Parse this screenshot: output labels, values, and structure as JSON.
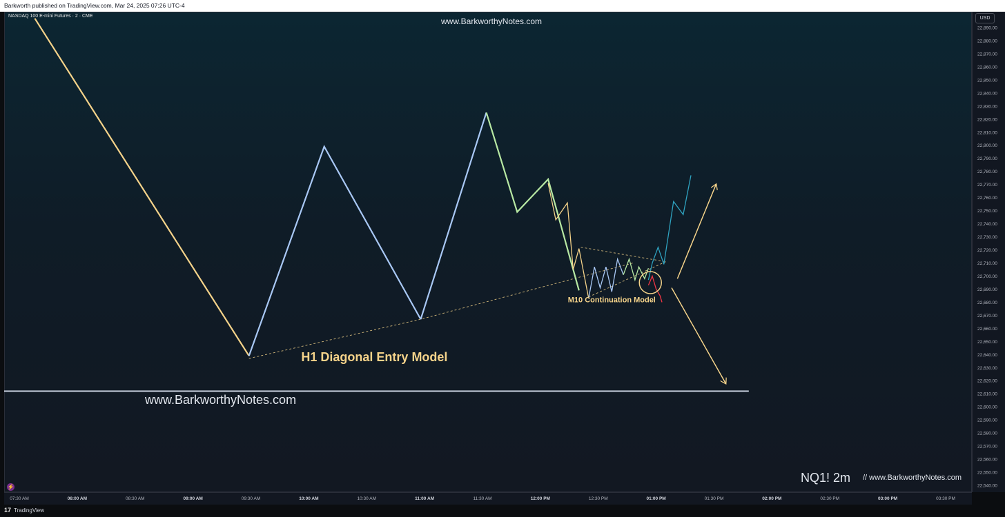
{
  "header": {
    "publisher": "Barkworth published on TradingView.com, Mar 24, 2025 07:26 UTC-4"
  },
  "symbol": {
    "title": "NASDAQ 100 E-mini Futures · 2 · CME"
  },
  "price_axis": {
    "currency": "USD"
  },
  "watermarks": {
    "top": "www.BarkworthyNotes.com",
    "bottom_left": "www.BarkworthyNotes.com",
    "ticker": "NQ1! 2m",
    "bottom_right": "//  www.BarkworthyNotes.com"
  },
  "footer": {
    "logo_icon": "tradingview-logo-icon",
    "label": "TradingView"
  },
  "annotations": {
    "h1": "H1 Diagonal Entry Model",
    "m10": "M10 Continuation Model"
  },
  "colors": {
    "yellow": "#f5d38a",
    "blue": "#a9c8f5",
    "green": "#b7e8a3",
    "teal": "#2fa3c0",
    "red": "#f23645",
    "level_line": "#dde6f5"
  },
  "chart_data": {
    "type": "line",
    "y_scale": "linear",
    "ylim": [
      22535,
      22895
    ],
    "grid": false,
    "y_ticks": [
      22540,
      22550,
      22560,
      22570,
      22580,
      22590,
      22600,
      22610,
      22620,
      22630,
      22640,
      22650,
      22660,
      22670,
      22680,
      22690,
      22700,
      22710,
      22720,
      22730,
      22740,
      22750,
      22760,
      22770,
      22780,
      22790,
      22800,
      22810,
      22820,
      22830,
      22840,
      22850,
      22860,
      22870,
      22880,
      22890
    ],
    "x_ticks": [
      {
        "label": "07:30 AM",
        "bold": false
      },
      {
        "label": "08:00 AM",
        "bold": true
      },
      {
        "label": "08:30 AM",
        "bold": false
      },
      {
        "label": "09:00 AM",
        "bold": true
      },
      {
        "label": "09:30 AM",
        "bold": false
      },
      {
        "label": "10:00 AM",
        "bold": true
      },
      {
        "label": "10:30 AM",
        "bold": false
      },
      {
        "label": "11:00 AM",
        "bold": true
      },
      {
        "label": "11:30 AM",
        "bold": false
      },
      {
        "label": "12:00 PM",
        "bold": true
      },
      {
        "label": "12:30 PM",
        "bold": false
      },
      {
        "label": "01:00 PM",
        "bold": true
      },
      {
        "label": "01:30 PM",
        "bold": false
      },
      {
        "label": "02:00 PM",
        "bold": true
      },
      {
        "label": "02:30 PM",
        "bold": false
      },
      {
        "label": "03:00 PM",
        "bold": true
      },
      {
        "label": "03:30 PM",
        "bold": false
      }
    ],
    "x_start_minutes": 450,
    "x_step_minutes": 30,
    "series": [
      {
        "color_key": "yellow",
        "width": 2.2,
        "points": [
          [
            458,
            22897
          ],
          [
            569,
            22639
          ]
        ]
      },
      {
        "color_key": "blue",
        "width": 2.2,
        "points": [
          [
            569,
            22639
          ],
          [
            608,
            22799
          ],
          [
            658,
            22667
          ]
        ]
      },
      {
        "color_key": "blue",
        "width": 2.2,
        "points": [
          [
            658,
            22667
          ],
          [
            692,
            22825
          ]
        ]
      },
      {
        "color_key": "green",
        "width": 2.2,
        "points": [
          [
            692,
            22825
          ],
          [
            708,
            22749
          ],
          [
            724,
            22774
          ],
          [
            740,
            22689
          ]
        ]
      },
      {
        "color_key": "yellow",
        "width": 1.3,
        "points": [
          [
            724,
            22771
          ],
          [
            728,
            22743
          ],
          [
            734,
            22756
          ],
          [
            737,
            22705
          ],
          [
            740,
            22721
          ],
          [
            745,
            22683
          ]
        ]
      },
      {
        "color_key": "blue",
        "width": 1.3,
        "points": [
          [
            745,
            22683
          ],
          [
            748,
            22707
          ],
          [
            751,
            22691
          ],
          [
            754,
            22707
          ],
          [
            757,
            22688
          ],
          [
            760,
            22713
          ],
          [
            763,
            22701
          ]
        ]
      },
      {
        "color_key": "green",
        "width": 1.3,
        "points": [
          [
            763,
            22701
          ],
          [
            766,
            22713
          ],
          [
            769,
            22697
          ],
          [
            771,
            22707
          ],
          [
            774,
            22698
          ],
          [
            776,
            22706
          ]
        ]
      },
      {
        "color_key": "red",
        "width": 1.3,
        "points": [
          [
            776,
            22693
          ],
          [
            778,
            22700
          ],
          [
            780,
            22690
          ],
          [
            782,
            22685
          ],
          [
            783,
            22680
          ]
        ]
      },
      {
        "color_key": "teal",
        "width": 1.3,
        "points": [
          [
            776,
            22697
          ],
          [
            778,
            22710
          ],
          [
            781,
            22722
          ],
          [
            784,
            22709
          ],
          [
            789,
            22757
          ],
          [
            794,
            22747
          ],
          [
            798,
            22777
          ]
        ]
      }
    ],
    "dashed_lines": [
      {
        "color_key": "yellow",
        "points": [
          [
            569,
            22637
          ],
          [
            658,
            22667
          ],
          [
            768,
            22710
          ]
        ]
      },
      {
        "color_key": "yellow",
        "points": [
          [
            741,
            22722
          ],
          [
            785,
            22711
          ]
        ]
      },
      {
        "color_key": "yellow",
        "points": [
          [
            745,
            22684
          ],
          [
            785,
            22711
          ]
        ]
      }
    ],
    "arrows": [
      {
        "color_key": "yellow",
        "from": [
          791,
          22698
        ],
        "to": [
          811,
          22770
        ]
      },
      {
        "color_key": "yellow",
        "from": [
          788,
          22691
        ],
        "to": [
          816,
          22618
        ]
      }
    ],
    "circle": {
      "color_key": "yellow",
      "center": [
        777,
        22695
      ]
    },
    "horizontal_level": {
      "color_key": "level_line",
      "y": 22612,
      "x_from": 426,
      "x_to": 828
    },
    "annotations": [
      {
        "text_key": "h1",
        "x": 634,
        "y": 22635
      },
      {
        "text_key": "m10",
        "x": 757,
        "y": 22680
      }
    ]
  }
}
